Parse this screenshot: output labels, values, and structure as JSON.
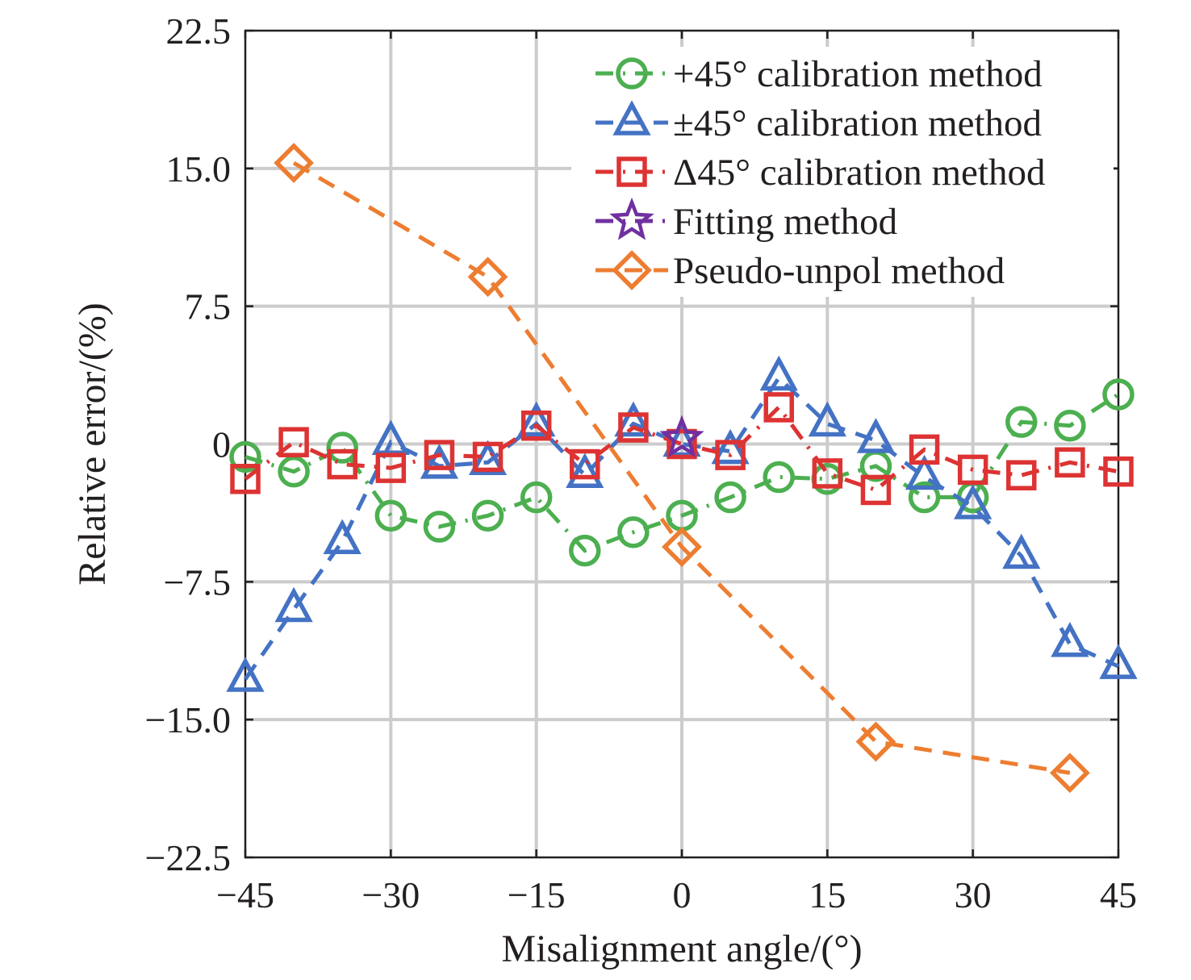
{
  "chart_data": {
    "type": "line",
    "xlabel": "Misalignment angle/(°)",
    "ylabel": "Relative error/(%)",
    "xlim": [
      -45,
      45
    ],
    "ylim": [
      -22.5,
      22.5
    ],
    "xticks": [
      -45,
      -30,
      -15,
      0,
      15,
      30,
      45
    ],
    "yticks": [
      -22.5,
      -15.0,
      -7.5,
      0,
      7.5,
      15.0,
      22.5
    ],
    "xtick_labels": [
      "−45",
      "−30",
      "−15",
      "0",
      "15",
      "30",
      "45"
    ],
    "ytick_labels": [
      "−22.5",
      "−15.0",
      "−7.5",
      "0",
      "7.5",
      "15.0",
      "22.5"
    ],
    "grid": true,
    "legend_position": "top-right",
    "series": [
      {
        "name": "+45° calibration method",
        "color": "#4caf50",
        "marker": "circle",
        "line": "dashdot",
        "x": [
          -45,
          -40,
          -35,
          -30,
          -25,
          -20,
          -15,
          -10,
          -5,
          0,
          5,
          10,
          15,
          20,
          25,
          30,
          35,
          40,
          45
        ],
        "y": [
          -0.7,
          -1.5,
          -0.2,
          -3.9,
          -4.5,
          -3.9,
          -2.9,
          -5.8,
          -4.8,
          -3.9,
          -2.9,
          -1.8,
          -1.9,
          -1.2,
          -2.9,
          -2.9,
          1.2,
          1.0,
          2.7
        ]
      },
      {
        "name": "±45° calibration method",
        "color": "#4472c4",
        "marker": "triangle",
        "line": "dashed",
        "x": [
          -45,
          -40,
          -35,
          -30,
          -25,
          -20,
          -15,
          -10,
          -5,
          0,
          5,
          10,
          15,
          20,
          25,
          30,
          35,
          40,
          45
        ],
        "y": [
          -12.8,
          -9.0,
          -5.3,
          0.1,
          -1.2,
          -1.0,
          1.1,
          -1.7,
          1.1,
          0.0,
          -0.4,
          3.6,
          1.1,
          0.2,
          -1.8,
          -3.4,
          -6.1,
          -10.9,
          -12.1
        ]
      },
      {
        "name": "Δ45° calibration method",
        "color": "#dd3333",
        "marker": "square",
        "line": "dashdot",
        "x": [
          -45,
          -40,
          -35,
          -30,
          -25,
          -20,
          -15,
          -10,
          -5,
          0,
          5,
          10,
          15,
          20,
          25,
          30,
          35,
          40,
          45
        ],
        "y": [
          -1.9,
          0.1,
          -1.1,
          -1.3,
          -0.6,
          -0.7,
          1.0,
          -1.1,
          0.9,
          0.0,
          -0.6,
          2.0,
          -1.6,
          -2.5,
          -0.3,
          -1.4,
          -1.7,
          -1.0,
          -1.5
        ]
      },
      {
        "name": "Fitting method",
        "color": "#7030a0",
        "marker": "star",
        "line": "dashdot",
        "x": [
          0
        ],
        "y": [
          0.3
        ]
      },
      {
        "name": "Pseudo-unpol method",
        "color": "#ed7d31",
        "marker": "diamond",
        "line": "dashed",
        "x": [
          -40,
          -20,
          0,
          20,
          40
        ],
        "y": [
          15.3,
          9.1,
          -5.6,
          -16.2,
          -17.9
        ]
      }
    ]
  }
}
